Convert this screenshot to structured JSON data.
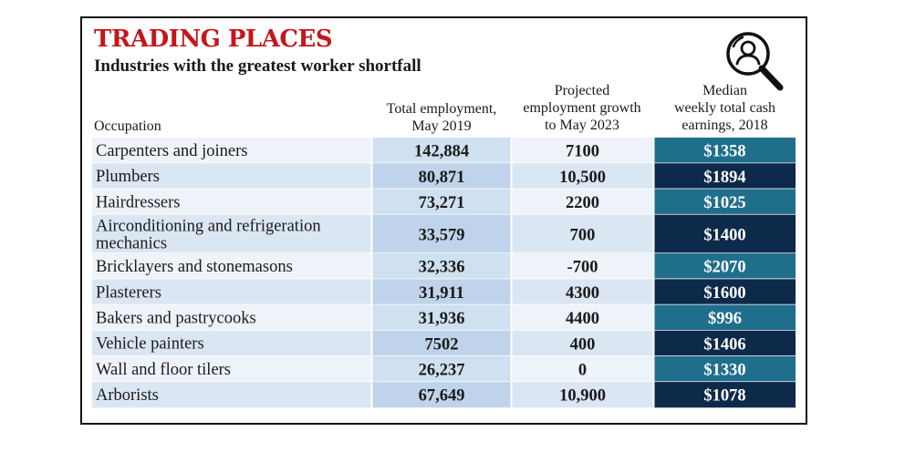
{
  "title": "TRADING PLACES",
  "subtitle": "Industries with the greatest worker shortfall",
  "colors": {
    "title": "#c4161c",
    "text": "#1a1a1a",
    "row_light": "#eef3fa",
    "row_dark": "#dbe6f3",
    "num_col_light": "#cfe0f0",
    "num_col_dark": "#bfd4ea",
    "earn_teal": "#1f6e8c",
    "earn_navy": "#0e2a4a",
    "separator": "#ffffff"
  },
  "icon": "search-person-icon",
  "chart_data": {
    "type": "table",
    "title": "TRADING PLACES",
    "subtitle": "Industries with the greatest worker shortfall",
    "columns": [
      "Occupation",
      "Total employment, May 2019",
      "Projected employment growth to May 2023",
      "Median weekly total cash earnings, 2018"
    ],
    "header_lines": {
      "occupation": [
        "Occupation"
      ],
      "employment": [
        "Total employment,",
        "May 2019"
      ],
      "growth": [
        "Projected",
        "employment growth",
        "to May 2023"
      ],
      "earnings": [
        "Median",
        "weekly total cash",
        "earnings, 2018"
      ]
    },
    "rows": [
      {
        "occupation": [
          "Carpenters and joiners"
        ],
        "employment": "142,884",
        "growth": "7100",
        "earnings": "$1358",
        "shade": "teal"
      },
      {
        "occupation": [
          "Plumbers"
        ],
        "employment": "80,871",
        "growth": "10,500",
        "earnings": "$1894",
        "shade": "navy"
      },
      {
        "occupation": [
          "Hairdressers"
        ],
        "employment": "73,271",
        "growth": "2200",
        "earnings": "$1025",
        "shade": "teal"
      },
      {
        "occupation": [
          "Airconditioning and refrigeration",
          "mechanics"
        ],
        "employment": "33,579",
        "growth": "700",
        "earnings": "$1400",
        "shade": "navy"
      },
      {
        "occupation": [
          "Bricklayers and stonemasons"
        ],
        "employment": "32,336",
        "growth": "-700",
        "earnings": "$2070",
        "shade": "teal"
      },
      {
        "occupation": [
          "Plasterers"
        ],
        "employment": "31,911",
        "growth": "4300",
        "earnings": "$1600",
        "shade": "navy"
      },
      {
        "occupation": [
          "Bakers and pastrycooks"
        ],
        "employment": "31,936",
        "growth": "4400",
        "earnings": "$996",
        "shade": "teal"
      },
      {
        "occupation": [
          "Vehicle painters"
        ],
        "employment": "7502",
        "growth": "400",
        "earnings": "$1406",
        "shade": "navy"
      },
      {
        "occupation": [
          "Wall and floor tilers"
        ],
        "employment": "26,237",
        "growth": "0",
        "earnings": "$1330",
        "shade": "teal"
      },
      {
        "occupation": [
          "Arborists"
        ],
        "employment": "67,649",
        "growth": "10,900",
        "earnings": "$1078",
        "shade": "navy"
      }
    ]
  }
}
